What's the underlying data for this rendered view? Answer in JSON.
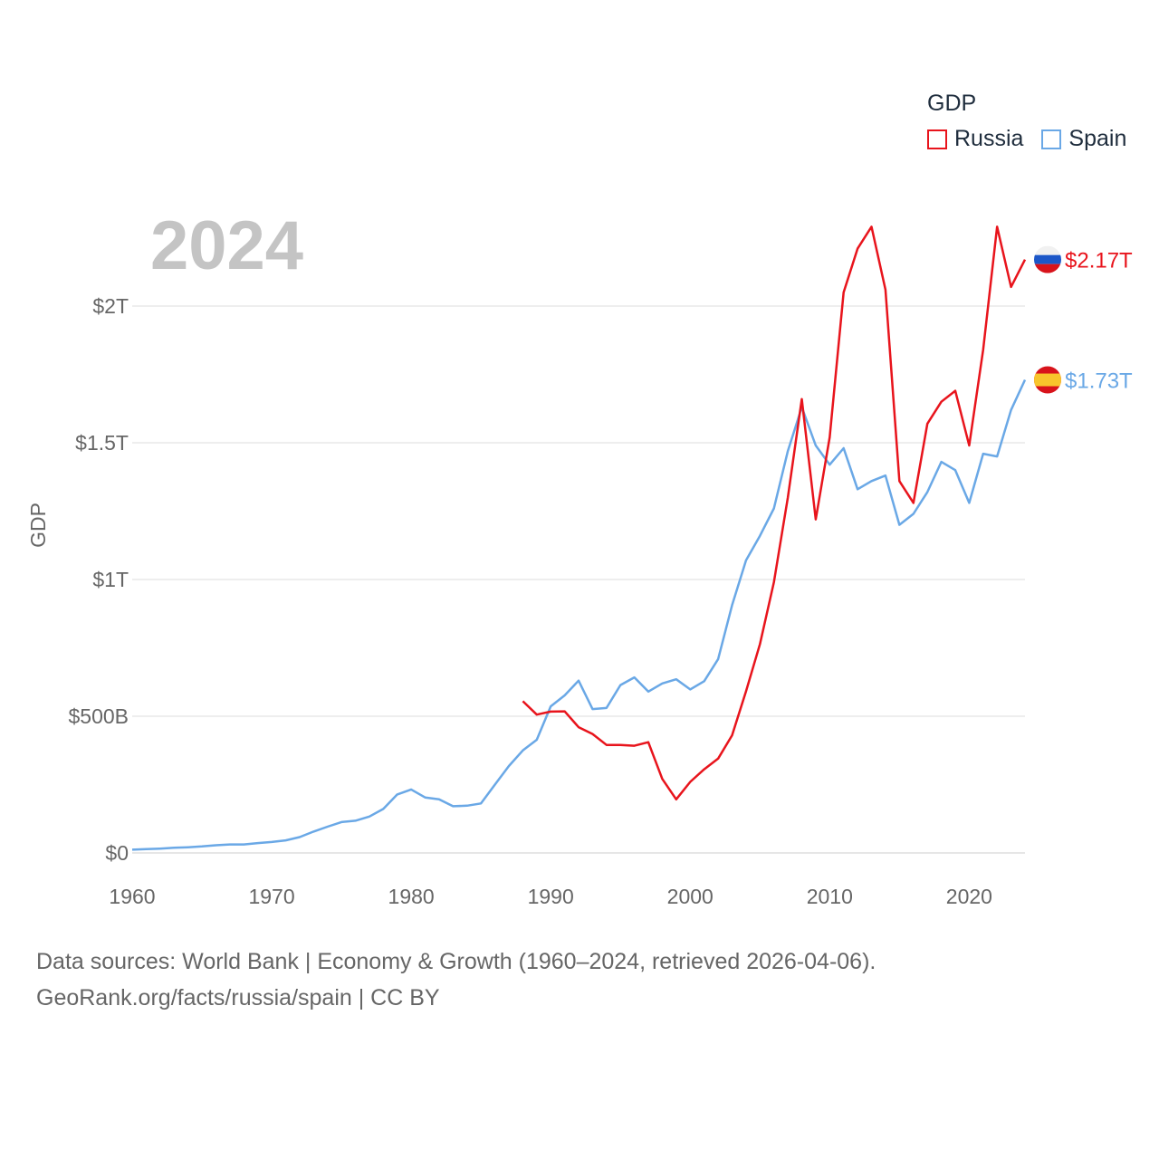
{
  "chart_data": {
    "type": "line",
    "year_label": "2024",
    "ylabel": "GDP",
    "legend_title": "GDP",
    "xlim": [
      1960,
      2024
    ],
    "ylim": [
      0,
      2.3
    ],
    "x_ticks": [
      1960,
      1970,
      1980,
      1990,
      2000,
      2010,
      2020
    ],
    "x_tick_labels": [
      "1960",
      "1970",
      "1980",
      "1990",
      "2000",
      "2010",
      "2020"
    ],
    "y_ticks": [
      0,
      0.5,
      1,
      1.5,
      2
    ],
    "y_tick_labels": [
      "$0",
      "$500B",
      "$1T",
      "$1.5T",
      "$2T"
    ],
    "units": "trillion USD",
    "series": [
      {
        "name": "Russia",
        "color": "#e8141c",
        "end_label": "$2.17T",
        "flag": "russia-flag",
        "x": [
          1988,
          1989,
          1990,
          1991,
          1992,
          1993,
          1994,
          1995,
          1996,
          1997,
          1998,
          1999,
          2000,
          2001,
          2002,
          2003,
          2004,
          2005,
          2006,
          2007,
          2008,
          2009,
          2010,
          2011,
          2012,
          2013,
          2014,
          2015,
          2016,
          2017,
          2018,
          2019,
          2020,
          2021,
          2022,
          2023,
          2024
        ],
        "values": [
          0.555,
          0.506,
          0.517,
          0.518,
          0.46,
          0.435,
          0.395,
          0.395,
          0.392,
          0.405,
          0.271,
          0.196,
          0.26,
          0.306,
          0.345,
          0.43,
          0.591,
          0.764,
          0.99,
          1.3,
          1.66,
          1.22,
          1.52,
          2.05,
          2.21,
          2.29,
          2.06,
          1.36,
          1.28,
          1.57,
          1.65,
          1.69,
          1.49,
          1.84,
          2.29,
          2.07,
          2.17
        ]
      },
      {
        "name": "Spain",
        "color": "#6aa8e6",
        "end_label": "$1.73T",
        "flag": "spain-flag",
        "x": [
          1960,
          1961,
          1962,
          1963,
          1964,
          1965,
          1966,
          1967,
          1968,
          1969,
          1970,
          1971,
          1972,
          1973,
          1974,
          1975,
          1976,
          1977,
          1978,
          1979,
          1980,
          1981,
          1982,
          1983,
          1984,
          1985,
          1986,
          1987,
          1988,
          1989,
          1990,
          1991,
          1992,
          1993,
          1994,
          1995,
          1996,
          1997,
          1998,
          1999,
          2000,
          2001,
          2002,
          2003,
          2004,
          2005,
          2006,
          2007,
          2008,
          2009,
          2010,
          2011,
          2012,
          2013,
          2014,
          2015,
          2016,
          2017,
          2018,
          2019,
          2020,
          2021,
          2022,
          2023,
          2024
        ],
        "values": [
          0.012,
          0.014,
          0.016,
          0.019,
          0.021,
          0.024,
          0.028,
          0.031,
          0.031,
          0.036,
          0.04,
          0.046,
          0.058,
          0.078,
          0.096,
          0.113,
          0.118,
          0.133,
          0.161,
          0.214,
          0.232,
          0.203,
          0.196,
          0.171,
          0.173,
          0.181,
          0.25,
          0.318,
          0.375,
          0.414,
          0.536,
          0.576,
          0.63,
          0.526,
          0.53,
          0.614,
          0.642,
          0.59,
          0.62,
          0.635,
          0.598,
          0.628,
          0.709,
          0.906,
          1.07,
          1.16,
          1.26,
          1.47,
          1.63,
          1.49,
          1.42,
          1.48,
          1.33,
          1.36,
          1.38,
          1.2,
          1.24,
          1.32,
          1.43,
          1.4,
          1.28,
          1.46,
          1.45,
          1.62,
          1.73
        ]
      }
    ]
  },
  "footer": {
    "line1": "Data sources: World Bank | Economy & Growth (1960–2024, retrieved 2026-04-06).",
    "line2": "GeoRank.org/facts/russia/spain | CC BY"
  }
}
